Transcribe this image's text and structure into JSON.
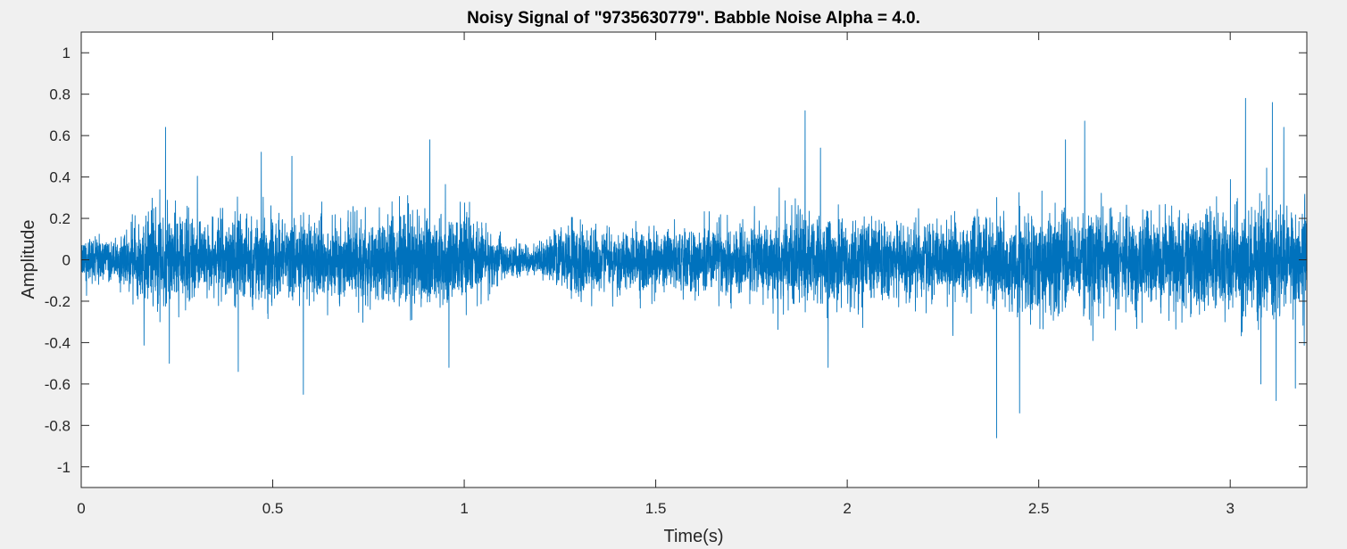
{
  "chart_data": {
    "type": "line",
    "title": "Noisy Signal of \"9735630779\". Babble Noise Alpha = 4.0.",
    "xlabel": "Time(s)",
    "ylabel": "Amplitude",
    "xlim": [
      0,
      3.2
    ],
    "ylim": [
      -1.1,
      1.1
    ],
    "xticks": [
      0,
      0.5,
      1,
      1.5,
      2,
      2.5,
      3
    ],
    "xtick_labels": [
      "0",
      "0.5",
      "1",
      "1.5",
      "2",
      "2.5",
      "3"
    ],
    "yticks": [
      -1,
      -0.8,
      -0.6,
      -0.4,
      -0.2,
      0,
      0.2,
      0.4,
      0.6,
      0.8,
      1
    ],
    "ytick_labels": [
      "-1",
      "-0.8",
      "-0.6",
      "-0.4",
      "-0.2",
      "0",
      "0.2",
      "0.4",
      "0.6",
      "0.8",
      "1"
    ],
    "grid": false,
    "line_color": "#0072bd",
    "series": [
      {
        "x_end": 3.2,
        "envelope_x": [
          0,
          0.05,
          0.1,
          0.13,
          0.2,
          0.25,
          0.3,
          0.4,
          0.5,
          0.55,
          0.6,
          0.65,
          0.7,
          0.8,
          0.9,
          1.0,
          1.05,
          1.1,
          1.15,
          1.2,
          1.25,
          1.3,
          1.35,
          1.4,
          1.5,
          1.6,
          1.7,
          1.8,
          1.9,
          2.0,
          2.1,
          2.2,
          2.3,
          2.4,
          2.5,
          2.6,
          2.7,
          2.8,
          2.9,
          3.0,
          3.1,
          3.2
        ],
        "envelope_amp": [
          0.2,
          0.21,
          0.18,
          0.3,
          0.42,
          0.44,
          0.33,
          0.36,
          0.38,
          0.34,
          0.35,
          0.28,
          0.36,
          0.4,
          0.4,
          0.35,
          0.28,
          0.16,
          0.12,
          0.14,
          0.28,
          0.3,
          0.26,
          0.25,
          0.26,
          0.28,
          0.3,
          0.33,
          0.38,
          0.36,
          0.33,
          0.33,
          0.36,
          0.4,
          0.45,
          0.44,
          0.42,
          0.4,
          0.42,
          0.46,
          0.46,
          0.44
        ],
        "peaks": [
          {
            "x": 0.22,
            "y": 0.64
          },
          {
            "x": 0.23,
            "y": -0.5
          },
          {
            "x": 0.41,
            "y": -0.54
          },
          {
            "x": 0.47,
            "y": 0.52
          },
          {
            "x": 0.55,
            "y": 0.5
          },
          {
            "x": 0.58,
            "y": -0.65
          },
          {
            "x": 0.91,
            "y": 0.58
          },
          {
            "x": 0.96,
            "y": -0.52
          },
          {
            "x": 1.89,
            "y": 0.72
          },
          {
            "x": 1.93,
            "y": 0.54
          },
          {
            "x": 1.95,
            "y": -0.52
          },
          {
            "x": 2.39,
            "y": -0.86
          },
          {
            "x": 2.45,
            "y": -0.74
          },
          {
            "x": 2.57,
            "y": 0.58
          },
          {
            "x": 2.62,
            "y": 0.67
          },
          {
            "x": 3.04,
            "y": 0.78
          },
          {
            "x": 3.08,
            "y": -0.6
          },
          {
            "x": 3.11,
            "y": 0.76
          },
          {
            "x": 3.12,
            "y": -0.68
          },
          {
            "x": 3.14,
            "y": 0.64
          },
          {
            "x": 3.17,
            "y": -0.62
          }
        ]
      }
    ]
  }
}
